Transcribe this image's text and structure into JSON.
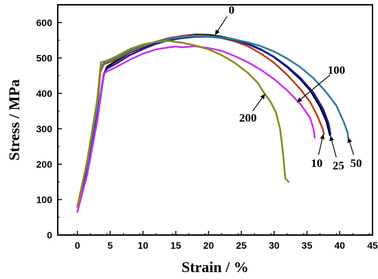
{
  "chart_data": {
    "type": "line",
    "xlabel": "Strain / %",
    "ylabel": "Stress / MPa",
    "xlim": [
      -3,
      45
    ],
    "ylim": [
      0,
      650
    ],
    "x_ticks": [
      0,
      5,
      10,
      15,
      20,
      25,
      30,
      35,
      40,
      45
    ],
    "y_ticks": [
      0,
      100,
      200,
      300,
      400,
      500,
      600
    ],
    "grid": false,
    "legend": "none",
    "series": [
      {
        "name": "0",
        "color": "#000000",
        "points": [
          [
            0,
            80
          ],
          [
            1.5,
            180
          ],
          [
            3,
            320
          ],
          [
            4,
            450
          ],
          [
            4.5,
            475
          ],
          [
            6,
            492
          ],
          [
            8,
            515
          ],
          [
            10,
            530
          ],
          [
            12,
            545
          ],
          [
            14,
            556
          ],
          [
            16,
            562
          ],
          [
            18,
            566
          ],
          [
            20,
            565
          ],
          [
            22,
            560
          ],
          [
            24,
            552
          ],
          [
            26,
            540
          ],
          [
            28,
            524
          ],
          [
            30,
            502
          ],
          [
            32,
            474
          ],
          [
            34,
            440
          ],
          [
            35.5,
            408
          ],
          [
            37,
            362
          ],
          [
            38,
            320
          ],
          [
            38.5,
            282
          ]
        ]
      },
      {
        "name": "10",
        "color": "#c0401a",
        "points": [
          [
            0,
            80
          ],
          [
            1.5,
            190
          ],
          [
            3,
            350
          ],
          [
            3.5,
            460
          ],
          [
            4,
            482
          ],
          [
            5.5,
            492
          ],
          [
            8,
            516
          ],
          [
            10,
            532
          ],
          [
            12,
            546
          ],
          [
            14,
            556
          ],
          [
            16,
            562
          ],
          [
            18,
            564
          ],
          [
            20,
            562
          ],
          [
            22,
            556
          ],
          [
            24,
            547
          ],
          [
            26,
            533
          ],
          [
            28,
            512
          ],
          [
            30,
            486
          ],
          [
            32,
            452
          ],
          [
            34,
            412
          ],
          [
            35.5,
            375
          ],
          [
            36.5,
            340
          ],
          [
            37.4,
            300
          ],
          [
            37.6,
            285
          ]
        ]
      },
      {
        "name": "25",
        "color": "#1a1aa6",
        "points": [
          [
            0,
            80
          ],
          [
            1.5,
            180
          ],
          [
            3,
            330
          ],
          [
            4,
            455
          ],
          [
            4.5,
            470
          ],
          [
            6,
            485
          ],
          [
            8,
            508
          ],
          [
            10,
            525
          ],
          [
            12,
            540
          ],
          [
            14,
            550
          ],
          [
            16,
            556
          ],
          [
            18,
            560
          ],
          [
            20,
            560
          ],
          [
            22,
            557
          ],
          [
            24,
            550
          ],
          [
            26,
            539
          ],
          [
            28,
            523
          ],
          [
            30,
            503
          ],
          [
            32,
            476
          ],
          [
            34,
            444
          ],
          [
            36,
            402
          ],
          [
            37.5,
            355
          ],
          [
            38.3,
            315
          ],
          [
            38.6,
            285
          ]
        ]
      },
      {
        "name": "50",
        "color": "#2a7f9a",
        "points": [
          [
            0,
            80
          ],
          [
            1.5,
            200
          ],
          [
            3,
            360
          ],
          [
            3.5,
            470
          ],
          [
            4,
            485
          ],
          [
            6,
            500
          ],
          [
            8,
            520
          ],
          [
            10,
            535
          ],
          [
            12,
            546
          ],
          [
            14,
            554
          ],
          [
            16,
            559
          ],
          [
            18,
            562
          ],
          [
            20,
            561
          ],
          [
            22,
            558
          ],
          [
            24,
            552
          ],
          [
            26,
            544
          ],
          [
            28,
            533
          ],
          [
            30,
            518
          ],
          [
            32,
            498
          ],
          [
            34,
            474
          ],
          [
            36,
            443
          ],
          [
            38,
            402
          ],
          [
            39.5,
            365
          ],
          [
            40.6,
            320
          ],
          [
            41.2,
            290
          ],
          [
            41.3,
            275
          ]
        ]
      },
      {
        "name": "100",
        "color": "#cc33ee",
        "points": [
          [
            0,
            65
          ],
          [
            1.5,
            170
          ],
          [
            3,
            320
          ],
          [
            4,
            455
          ],
          [
            4.5,
            462
          ],
          [
            6,
            475
          ],
          [
            8,
            495
          ],
          [
            10,
            512
          ],
          [
            12,
            524
          ],
          [
            14,
            530
          ],
          [
            15,
            532
          ],
          [
            16,
            530
          ],
          [
            18,
            533
          ],
          [
            20,
            528
          ],
          [
            22,
            520
          ],
          [
            24,
            505
          ],
          [
            26,
            488
          ],
          [
            28,
            466
          ],
          [
            30,
            440
          ],
          [
            32,
            408
          ],
          [
            34,
            370
          ],
          [
            35.5,
            330
          ],
          [
            36,
            300
          ],
          [
            36.2,
            275
          ]
        ]
      },
      {
        "name": "200",
        "color": "#8a8a1a",
        "points": [
          [
            0,
            80
          ],
          [
            1.5,
            210
          ],
          [
            3,
            380
          ],
          [
            3.6,
            488
          ],
          [
            4.5,
            492
          ],
          [
            6,
            505
          ],
          [
            8,
            525
          ],
          [
            10,
            538
          ],
          [
            12,
            545
          ],
          [
            14,
            548
          ],
          [
            15,
            545
          ],
          [
            16,
            543
          ],
          [
            18,
            535
          ],
          [
            20,
            524
          ],
          [
            22,
            508
          ],
          [
            24,
            486
          ],
          [
            26,
            458
          ],
          [
            27.5,
            430
          ],
          [
            28.5,
            400
          ],
          [
            29.5,
            375
          ],
          [
            30.3,
            345
          ],
          [
            30.9,
            300
          ],
          [
            31.3,
            240
          ],
          [
            31.7,
            160
          ],
          [
            32.2,
            150
          ]
        ]
      }
    ],
    "annotations": [
      {
        "text": "0",
        "x": 23.5,
        "y": 625,
        "arrow_to": [
          21,
          565
        ]
      },
      {
        "text": "100",
        "x": 39.5,
        "y": 455,
        "arrow_to": [
          33.5,
          375
        ]
      },
      {
        "text": "200",
        "x": 26.0,
        "y": 320,
        "arrow_to": [
          28.6,
          398
        ]
      },
      {
        "text": "10",
        "x": 36.5,
        "y": 192,
        "arrow_to": [
          37.5,
          285
        ]
      },
      {
        "text": "25",
        "x": 39.8,
        "y": 185,
        "arrow_to": [
          38.6,
          280
        ]
      },
      {
        "text": "50",
        "x": 42.5,
        "y": 192,
        "arrow_to": [
          41.3,
          275
        ]
      }
    ]
  }
}
